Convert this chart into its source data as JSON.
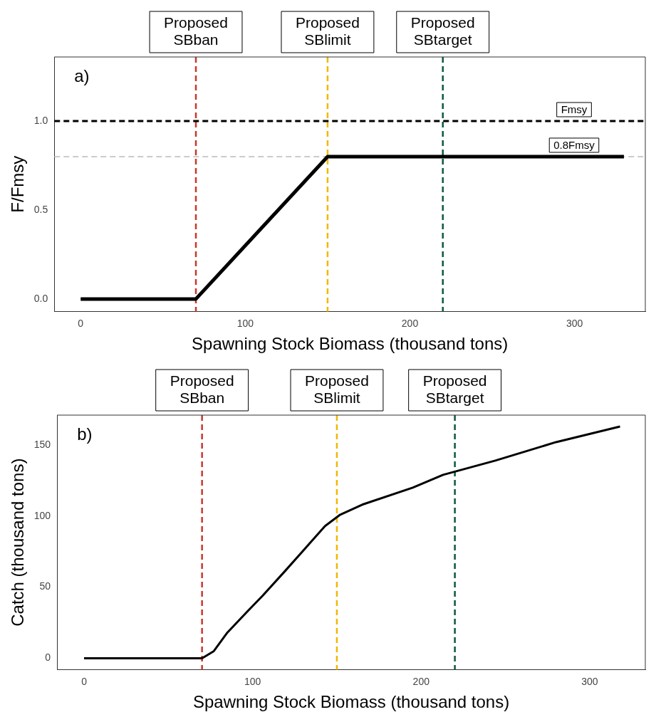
{
  "chart_data": [
    {
      "type": "line",
      "title": "a)",
      "xlabel": "Spawning Stock Biomass (thousand tons)",
      "ylabel": "F/Fmsy",
      "xlim": [
        -16,
        343
      ],
      "ylim": [
        -0.07,
        1.36
      ],
      "xticks": [
        0,
        100,
        200,
        300
      ],
      "yticks": [
        {
          "value": 0,
          "label": "0.0"
        },
        {
          "value": 0.5,
          "label": "0.5"
        },
        {
          "value": 1,
          "label": "1.0"
        }
      ],
      "grid": false,
      "legend": false,
      "series": [
        {
          "color": "#000000",
          "x": [
            0,
            70,
            150,
            330
          ],
          "values": [
            0,
            0,
            0.8,
            0.8
          ]
        }
      ],
      "ref_lines": [
        {
          "axis": "x",
          "value": 70,
          "label": "Proposed SBban",
          "color": "#c8392b",
          "line_style": "dashed"
        },
        {
          "axis": "x",
          "value": 150,
          "label": "Proposed SBlimit",
          "color": "#f0b800",
          "line_style": "dashed"
        },
        {
          "axis": "x",
          "value": 220,
          "label": "Proposed SBtarget",
          "color": "#0b5a3e",
          "line_style": "dashed"
        },
        {
          "axis": "y",
          "value": 1,
          "label": "Fmsy",
          "color": "#000000",
          "line_style": "dashed"
        },
        {
          "axis": "y",
          "value": 0.8,
          "label": "0.8Fmsy",
          "color": "#bbbbbb",
          "line_style": "dashed"
        }
      ]
    },
    {
      "type": "line",
      "title": "b)",
      "xlabel": "Spawning Stock Biomass (thousand tons)",
      "ylabel": "Catch (thousand tons)",
      "xlim": [
        -16,
        333
      ],
      "ylim": [
        -8,
        171
      ],
      "xticks": [
        0,
        100,
        200,
        300
      ],
      "yticks": [
        0,
        50,
        100,
        150
      ],
      "grid": false,
      "legend": false,
      "series": [
        {
          "color": "#000000",
          "x": [
            0,
            70,
            77,
            85,
            97,
            106,
            119,
            131,
            143,
            152,
            165,
            195,
            213,
            244,
            280,
            318
          ],
          "values": [
            0,
            0,
            5,
            18,
            33,
            44,
            61,
            77,
            93,
            101,
            108,
            120,
            129,
            139,
            152,
            163
          ]
        }
      ],
      "ref_lines": [
        {
          "axis": "x",
          "value": 70,
          "label": "Proposed SBban",
          "color": "#c8392b",
          "line_style": "dashed"
        },
        {
          "axis": "x",
          "value": 150,
          "label": "Proposed SBlimit",
          "color": "#f0b800",
          "line_style": "dashed"
        },
        {
          "axis": "x",
          "value": 220,
          "label": "Proposed SBtarget",
          "color": "#0b5a3e",
          "line_style": "dashed"
        }
      ]
    }
  ]
}
